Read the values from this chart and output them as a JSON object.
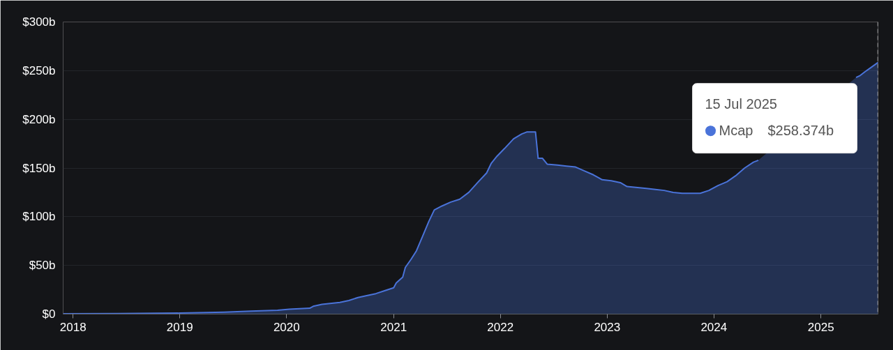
{
  "chart_data": {
    "type": "area",
    "x": [
      "2017-11-28",
      "2018-06-01",
      "2019-01-01",
      "2019-06-01",
      "2019-09-01",
      "2019-12-01",
      "2020-01-10",
      "2020-03-20",
      "2020-04-01",
      "2020-05-01",
      "2020-07-01",
      "2020-08-01",
      "2020-09-01",
      "2020-10-01",
      "2020-11-01",
      "2020-12-01",
      "2021-01-01",
      "2021-01-10",
      "2021-02-01",
      "2021-02-10",
      "2021-03-01",
      "2021-03-20",
      "2021-04-10",
      "2021-05-01",
      "2021-05-20",
      "2021-06-15",
      "2021-07-15",
      "2021-08-15",
      "2021-09-15",
      "2021-10-15",
      "2021-11-15",
      "2021-12-01",
      "2021-12-20",
      "2022-01-15",
      "2022-02-15",
      "2022-03-15",
      "2022-04-01",
      "2022-05-01",
      "2022-05-10",
      "2022-05-25",
      "2022-06-10",
      "2022-07-15",
      "2022-08-15",
      "2022-09-15",
      "2022-10-15",
      "2022-11-15",
      "2022-12-15",
      "2023-01-15",
      "2023-02-15",
      "2023-03-10",
      "2023-04-15",
      "2023-05-15",
      "2023-06-15",
      "2023-07-15",
      "2023-08-15",
      "2023-09-15",
      "2023-10-15",
      "2023-11-15",
      "2023-12-15",
      "2024-01-15",
      "2024-02-15",
      "2024-03-15",
      "2024-04-15",
      "2024-05-15",
      "2024-06-01",
      "2024-12-01",
      "2025-05-01",
      "2025-05-15",
      "2025-06-01",
      "2025-06-20",
      "2025-07-15"
    ],
    "series": [
      {
        "name": "Mcap",
        "color": "#4a73d9",
        "values": [
          0.3,
          0.5,
          1,
          2,
          3,
          4,
          5,
          6,
          8,
          10,
          12,
          14,
          17,
          19,
          21,
          24,
          27,
          32,
          38,
          48,
          56,
          65,
          80,
          95,
          107,
          111,
          115,
          118,
          125,
          135,
          145,
          155,
          162,
          170,
          180,
          185,
          187,
          187,
          160,
          160,
          154,
          153,
          152,
          151,
          147,
          143,
          138,
          137,
          135,
          131,
          130,
          129,
          128,
          127,
          125,
          124,
          124,
          124,
          127,
          132,
          136,
          142,
          150,
          156,
          158,
          null,
          243,
          245,
          249,
          253,
          258.374
        ]
      }
    ],
    "xlim": [
      "2017-11-28",
      "2025-07-15"
    ],
    "xticks": [
      {
        "value": "2018-01-01",
        "label": "2018"
      },
      {
        "value": "2019-01-01",
        "label": "2019"
      },
      {
        "value": "2020-01-01",
        "label": "2020"
      },
      {
        "value": "2021-01-01",
        "label": "2021"
      },
      {
        "value": "2022-01-01",
        "label": "2022"
      },
      {
        "value": "2023-01-01",
        "label": "2023"
      },
      {
        "value": "2024-01-01",
        "label": "2024"
      },
      {
        "value": "2025-01-01",
        "label": "2025"
      }
    ],
    "ylim": [
      0,
      300
    ],
    "yticks": [
      {
        "value": 0,
        "label": "$0"
      },
      {
        "value": 50,
        "label": "$50b"
      },
      {
        "value": 100,
        "label": "$100b"
      },
      {
        "value": 150,
        "label": "$150b"
      },
      {
        "value": 200,
        "label": "$200b"
      },
      {
        "value": 250,
        "label": "$250b"
      },
      {
        "value": 300,
        "label": "$300b"
      }
    ],
    "grid": "y",
    "ref_lines": [
      {
        "axis": "x",
        "value": "2025-07-15",
        "label": null,
        "line_style": "dashed",
        "color": "#bbbbbb"
      }
    ],
    "annotations": [
      "15 Jul 2025",
      "$258.374b"
    ]
  }
}
